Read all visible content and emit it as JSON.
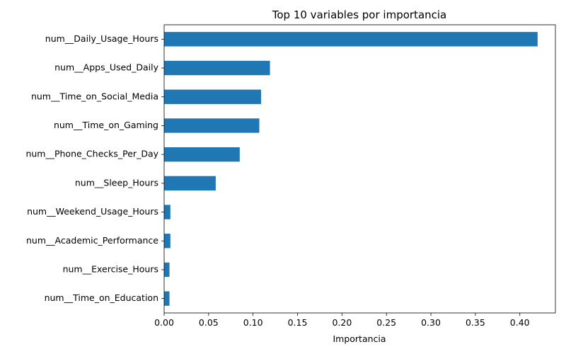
{
  "chart_data": {
    "type": "bar",
    "orientation": "horizontal",
    "title": "Top 10 variables por importancia",
    "xlabel": "Importancia",
    "ylabel": "",
    "xlim": [
      0,
      0.44
    ],
    "xticks": [
      "0.00",
      "0.05",
      "0.10",
      "0.15",
      "0.20",
      "0.25",
      "0.30",
      "0.35",
      "0.40"
    ],
    "grid": false,
    "legend": "none",
    "bar_color": "#1f77b4",
    "categories": [
      "num__Daily_Usage_Hours",
      "num__Apps_Used_Daily",
      "num__Time_on_Social_Media",
      "num__Time_on_Gaming",
      "num__Phone_Checks_Per_Day",
      "num__Sleep_Hours",
      "num__Weekend_Usage_Hours",
      "num__Academic_Performance",
      "num__Exercise_Hours",
      "num__Time_on_Education"
    ],
    "values": [
      0.42,
      0.119,
      0.109,
      0.107,
      0.085,
      0.058,
      0.007,
      0.007,
      0.006,
      0.006
    ]
  }
}
